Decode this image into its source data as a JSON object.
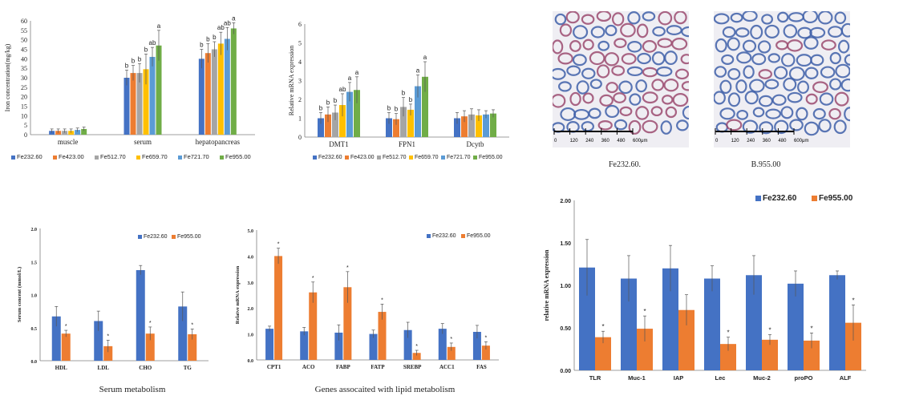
{
  "colors": {
    "fe232": "#4472C4",
    "fe423": "#ED7D31",
    "fe512": "#A5A5A5",
    "fe659": "#FFC000",
    "fe721": "#5B9BD5",
    "fe955": "#70AD47",
    "axis": "#808080",
    "text": "#222222"
  },
  "images": {
    "left_caption": "Fe232.60.",
    "right_caption": "B.955.00",
    "scale_labels": [
      "0",
      "120",
      "240",
      "360",
      "480",
      "600μm"
    ]
  },
  "captions": {
    "serum_metabolism": "Serum metabolism",
    "lipid_genes": "Genes assocaited with lipid metabolism"
  },
  "chart_data": [
    {
      "id": "chart1",
      "type": "bar",
      "ylabel": "Iron concentration(mg/kg)",
      "ylim": [
        0,
        60
      ],
      "yticks": [
        0,
        5,
        10,
        15,
        20,
        25,
        30,
        35,
        40,
        45,
        50,
        55,
        60
      ],
      "categories": [
        "muscle",
        "serum",
        "hepatopancreas"
      ],
      "series": [
        {
          "name": "Fe232.60",
          "color": "#4472C4",
          "values": [
            2,
            30,
            40
          ],
          "errors": [
            1,
            4,
            5
          ],
          "letters": [
            "",
            "b",
            "b"
          ]
        },
        {
          "name": "Fe423.00",
          "color": "#ED7D31",
          "values": [
            2,
            32.5,
            43
          ],
          "errors": [
            1,
            4,
            5
          ],
          "letters": [
            "",
            "b",
            "b"
          ]
        },
        {
          "name": "Fe512.70",
          "color": "#A5A5A5",
          "values": [
            2,
            32.5,
            45
          ],
          "errors": [
            1,
            5,
            4
          ],
          "letters": [
            "",
            "b",
            "b"
          ]
        },
        {
          "name": "Fe659.70",
          "color": "#FFC000",
          "values": [
            2,
            34.5,
            48
          ],
          "errors": [
            1,
            8,
            6
          ],
          "letters": [
            "",
            "b",
            "ab"
          ]
        },
        {
          "name": "Fe721.70",
          "color": "#5B9BD5",
          "values": [
            2.5,
            41,
            50.5
          ],
          "errors": [
            1,
            5,
            6
          ],
          "letters": [
            "",
            "ab",
            "ab"
          ]
        },
        {
          "name": "Fe955.00",
          "color": "#70AD47",
          "values": [
            3,
            47,
            56
          ],
          "errors": [
            1,
            8,
            3
          ],
          "letters": [
            "",
            "a",
            "a"
          ]
        }
      ],
      "legend": "bottom"
    },
    {
      "id": "chart2",
      "type": "bar",
      "ylabel": "Relative mRNA expression",
      "ylim": [
        0,
        6
      ],
      "yticks": [
        0,
        1,
        2,
        3,
        4,
        5,
        6
      ],
      "categories": [
        "DMT1",
        "FPN1",
        "Dcytb"
      ],
      "series": [
        {
          "name": "Fe232.60",
          "color": "#4472C4",
          "values": [
            1,
            1,
            1
          ],
          "errors": [
            0.3,
            0.3,
            0.3
          ],
          "letters": [
            "b",
            "b",
            ""
          ]
        },
        {
          "name": "Fe423.00",
          "color": "#ED7D31",
          "values": [
            1.2,
            0.95,
            1.1
          ],
          "errors": [
            0.4,
            0.3,
            0.3
          ],
          "letters": [
            "b",
            "b",
            ""
          ]
        },
        {
          "name": "Fe512.70",
          "color": "#A5A5A5",
          "values": [
            1.3,
            1.6,
            1.2
          ],
          "errors": [
            0.4,
            0.5,
            0.3
          ],
          "letters": [
            "b",
            "b",
            ""
          ]
        },
        {
          "name": "Fe659.70",
          "color": "#FFC000",
          "values": [
            1.7,
            1.45,
            1.15
          ],
          "errors": [
            0.6,
            0.3,
            0.3
          ],
          "letters": [
            "ab",
            "b",
            ""
          ]
        },
        {
          "name": "Fe721.70",
          "color": "#5B9BD5",
          "values": [
            2.4,
            2.7,
            1.2
          ],
          "errors": [
            0.5,
            0.6,
            0.2
          ],
          "letters": [
            "a",
            "a",
            ""
          ]
        },
        {
          "name": "Fe955.00",
          "color": "#70AD47",
          "values": [
            2.5,
            3.2,
            1.25
          ],
          "errors": [
            0.7,
            0.8,
            0.2
          ],
          "letters": [
            "a",
            "a",
            ""
          ]
        }
      ],
      "legend": "bottom"
    },
    {
      "id": "chart3",
      "type": "bar",
      "ylabel": "Serum concent (mmol/L)",
      "ylim": [
        0,
        2.0
      ],
      "yticks": [
        "0.0",
        "0.5",
        "1.0",
        "1.5",
        "2.0"
      ],
      "categories": [
        "HDL",
        "LDL",
        "CHO",
        "TG"
      ],
      "series": [
        {
          "name": "Fe232.60",
          "color": "#4472C4",
          "values": [
            0.67,
            0.6,
            1.37,
            0.82
          ],
          "errors": [
            0.15,
            0.15,
            0.07,
            0.22
          ],
          "letters": [
            "",
            "",
            "",
            ""
          ]
        },
        {
          "name": "Fe955.00",
          "color": "#ED7D31",
          "values": [
            0.41,
            0.22,
            0.41,
            0.4
          ],
          "errors": [
            0.05,
            0.09,
            0.1,
            0.08
          ],
          "letters": [
            "*",
            "*",
            "*",
            "*"
          ]
        }
      ],
      "legend": "top-right"
    },
    {
      "id": "chart4",
      "type": "bar",
      "ylabel": "Relatve mRNA expression",
      "ylim": [
        0,
        5.0
      ],
      "yticks": [
        "0.0",
        "1.0",
        "2.0",
        "3.0",
        "4.0",
        "5.0"
      ],
      "categories": [
        "CPT1",
        "ACO",
        "FABP",
        "FATP",
        "SREBP",
        "ACC1",
        "FAS"
      ],
      "series": [
        {
          "name": "Fe232.60",
          "color": "#4472C4",
          "values": [
            1.2,
            1.1,
            1.05,
            1.0,
            1.15,
            1.2,
            1.08
          ],
          "errors": [
            0.1,
            0.15,
            0.3,
            0.15,
            0.3,
            0.2,
            0.25
          ],
          "letters": [
            "",
            "",
            "",
            "",
            "",
            "",
            ""
          ]
        },
        {
          "name": "Fe955.00",
          "color": "#ED7D31",
          "values": [
            4.0,
            2.6,
            2.8,
            1.85,
            0.27,
            0.5,
            0.55
          ],
          "errors": [
            0.3,
            0.4,
            0.6,
            0.3,
            0.1,
            0.15,
            0.15
          ],
          "letters": [
            "*",
            "*",
            "*",
            "*",
            "*",
            "*",
            "*"
          ]
        }
      ],
      "legend": "top-right"
    },
    {
      "id": "chart5",
      "type": "bar",
      "ylabel": "relative mRNA expression",
      "ylim": [
        0,
        2.0
      ],
      "yticks": [
        "0.00",
        "0.50",
        "1.00",
        "1.50",
        "2.00"
      ],
      "categories": [
        "TLR",
        "Muc-1",
        "IAP",
        "Lec",
        "Muc-2",
        "proPO",
        "ALF"
      ],
      "series": [
        {
          "name": "Fe232.60",
          "color": "#4472C4",
          "values": [
            1.21,
            1.08,
            1.2,
            1.08,
            1.12,
            1.02,
            1.12
          ],
          "errors": [
            0.33,
            0.27,
            0.27,
            0.15,
            0.23,
            0.15,
            0.05
          ],
          "letters": [
            "",
            "",
            "",
            "",
            "",
            "",
            ""
          ]
        },
        {
          "name": "Fe955.00",
          "color": "#ED7D31",
          "values": [
            0.39,
            0.49,
            0.71,
            0.31,
            0.36,
            0.35,
            0.56
          ],
          "errors": [
            0.07,
            0.15,
            0.18,
            0.08,
            0.06,
            0.09,
            0.21
          ],
          "letters": [
            "*",
            "*",
            "",
            "*",
            "*",
            "*",
            "*"
          ]
        }
      ],
      "legend": "top"
    }
  ]
}
